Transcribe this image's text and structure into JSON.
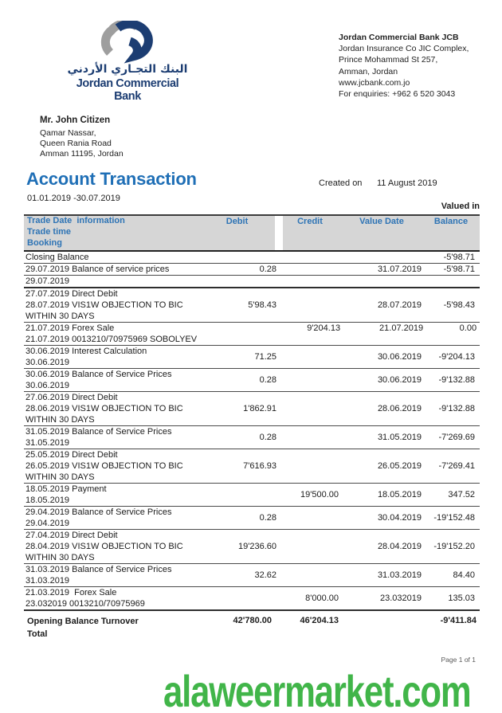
{
  "logo": {
    "arabic": "البنك التجـاري الأردني",
    "english": "Jordan Commercial Bank",
    "navy": "#1c3d72",
    "gray": "#9e9e9e"
  },
  "bank_info": {
    "name": "Jordan Commercial Bank JCB",
    "lines": [
      "Jordan Insurance Co JIC Complex,",
      "Prince Mohammad St 257,",
      "Amman, Jordan",
      "www.jcbank.com.jo",
      "For enquiries: +962 6 520 3043"
    ]
  },
  "customer": {
    "name": "Mr. John Citizen",
    "lines": [
      "Qamar Nassar,",
      "Queen Rania Road",
      "Amman 11195, Jordan"
    ]
  },
  "title": "Account Transaction",
  "date_range": "01.01.2019 -30.07.2019",
  "created_on_label": "Created on",
  "created_on_value": "11 August 2019",
  "valued_in_label": "Valued in",
  "table": {
    "headers": {
      "line1": "Trade Date  information",
      "line2": "Trade time",
      "line3": "Booking",
      "debit": "Debit",
      "credit": "Credit",
      "value_date": "Value Date",
      "balance": "Balance",
      "header_text_color": "#2e74b5",
      "header_bg_color": "#d6d6d6"
    },
    "rows": [
      {
        "lines": [
          "Closing Balance"
        ],
        "debit": "",
        "credit": "",
        "value_date": "",
        "balance": "-5'98.71",
        "valign": "top",
        "rule": "thin"
      },
      {
        "lines": [
          "29.07.2019 Balance of service prices"
        ],
        "debit": "0.28",
        "credit": "",
        "value_date": "31.07.2019",
        "balance": "-5'98.71",
        "valign": "top",
        "rule": "thin"
      },
      {
        "lines": [
          "29.07.2019"
        ],
        "debit": "",
        "credit": "",
        "value_date": "",
        "balance": "",
        "valign": "top",
        "rule": "thick"
      },
      {
        "lines": [
          "27.07.2019 Direct Debit",
          "28.07.2019 VIS1W OBJECTION TO BIC",
          "WITHIN 30 DAYS"
        ],
        "debit": "5'98.43",
        "credit": "",
        "value_date": "28.07.2019",
        "balance": "-5'98.43",
        "valign": "center",
        "rule": "thin"
      },
      {
        "lines": [
          "21.07.2019 Forex Sale",
          "21.07.2019 0013210/70975969 SOBOLYEV"
        ],
        "debit": "",
        "credit": "9'204.13",
        "value_date": "21.07.2019",
        "balance": "0.00",
        "valign": "top",
        "rule": "thin"
      },
      {
        "lines": [
          "30.06.2019 Interest Calculation",
          "30.06.2019"
        ],
        "debit": "71.25",
        "credit": "",
        "value_date": "30.06.2019",
        "balance": "-9'204.13",
        "valign": "center",
        "rule": "thin"
      },
      {
        "lines": [
          "30.06.2019 Balance of Service Prices",
          "30.06.2019"
        ],
        "debit": "0.28",
        "credit": "",
        "value_date": "30.06.2019",
        "balance": "-9'132.88",
        "valign": "center",
        "rule": "thin"
      },
      {
        "lines": [
          "27.06.2019 Direct Debit",
          "28.06.2019 VIS1W OBJECTION TO BIC",
          "WITHIN 30 DAYS"
        ],
        "debit": "1'862.91",
        "credit": "",
        "value_date": "28.06.2019",
        "balance": "-9'132.88",
        "valign": "center",
        "rule": "thin"
      },
      {
        "lines": [
          "31.05.2019 Balance of Service Prices",
          "31.05.2019"
        ],
        "debit": "0.28",
        "credit": "",
        "value_date": "31.05.2019",
        "balance": "-7'269.69",
        "valign": "center",
        "rule": "thin"
      },
      {
        "lines": [
          "25.05.2019 Direct Debit",
          "26.05.2019 VIS1W OBJECTION TO BIC",
          "WITHIN 30 DAYS"
        ],
        "debit": "7'616.93",
        "credit": "",
        "value_date": "26.05.2019",
        "balance": "-7'269.41",
        "valign": "center",
        "rule": "thin"
      },
      {
        "lines": [
          "18.05.2019 Payment",
          "18.05.2019"
        ],
        "debit": "",
        "credit": "19'500.00",
        "value_date": "18.05.2019",
        "balance": "347.52",
        "valign": "center",
        "rule": "thin"
      },
      {
        "lines": [
          "29.04.2019 Balance of Service Prices",
          "29.04.2019"
        ],
        "debit": "0.28",
        "credit": "",
        "value_date": "30.04.2019",
        "balance": "-19'152.48",
        "valign": "center",
        "rule": "thin"
      },
      {
        "lines": [
          "27.04.2019 Direct Debit",
          "28.04.2019 VIS1W OBJECTION TO BIC",
          "WITHIN 30 DAYS"
        ],
        "debit": "19'236.60",
        "credit": "",
        "value_date": "28.04.2019",
        "balance": "-19'152.20",
        "valign": "center",
        "rule": "thin"
      },
      {
        "lines": [
          "31.03.2019 Balance of Service Prices",
          "31.03.2019"
        ],
        "debit": "32.62",
        "credit": "",
        "value_date": "31.03.2019",
        "balance": "84.40",
        "valign": "center",
        "rule": "thin"
      },
      {
        "lines": [
          "21.03.2019  Forex Sale",
          "23.032019 0013210/70975969"
        ],
        "debit": "",
        "credit": "8'000.00",
        "value_date": "23.032019",
        "balance": "135.03",
        "valign": "center",
        "rule": "thick"
      }
    ],
    "totals": {
      "label_line1": "Opening Balance Turnover",
      "label_line2": "Total",
      "debit": "42'780.00",
      "credit": "46'204.13",
      "balance": "-9'411.84"
    }
  },
  "footer": {
    "page_indicator": "Page 1 of 1"
  },
  "watermark": {
    "text": "alaweermarket.com",
    "color": "#41b549"
  }
}
